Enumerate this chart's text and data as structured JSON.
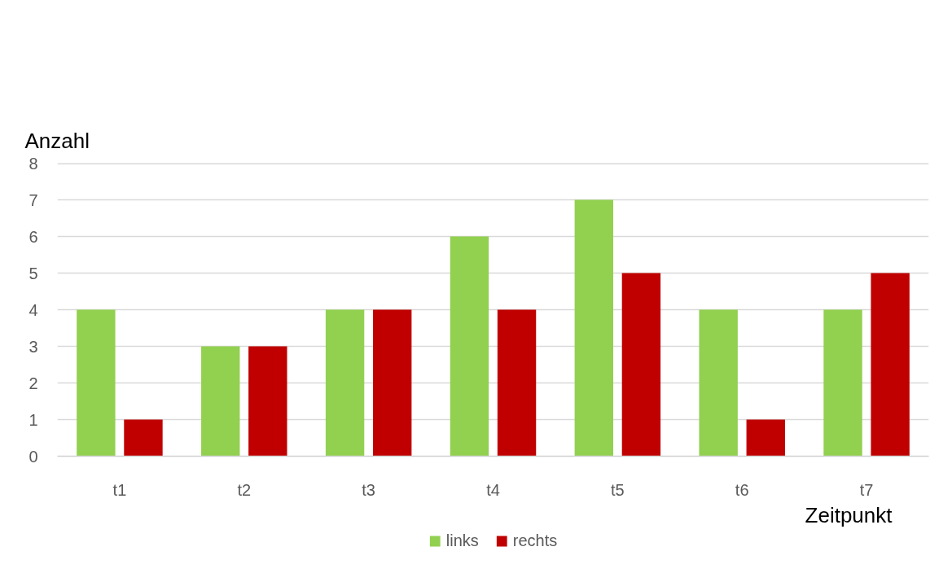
{
  "chart_data": {
    "type": "bar",
    "ylabel": "Anzahl",
    "xlabel": "Zeitpunkt",
    "categories": [
      "t1",
      "t2",
      "t3",
      "t4",
      "t5",
      "t6",
      "t7"
    ],
    "series": [
      {
        "name": "links",
        "color": "#92d050",
        "values": [
          4,
          3,
          4,
          6,
          7,
          4,
          4
        ]
      },
      {
        "name": "rechts",
        "color": "#c00000",
        "values": [
          1,
          3,
          4,
          4,
          5,
          1,
          5
        ]
      }
    ],
    "ylim": [
      0,
      8
    ],
    "yticks": [
      0,
      1,
      2,
      3,
      4,
      5,
      6,
      7,
      8
    ],
    "grid": "y",
    "legend": "bottom"
  }
}
